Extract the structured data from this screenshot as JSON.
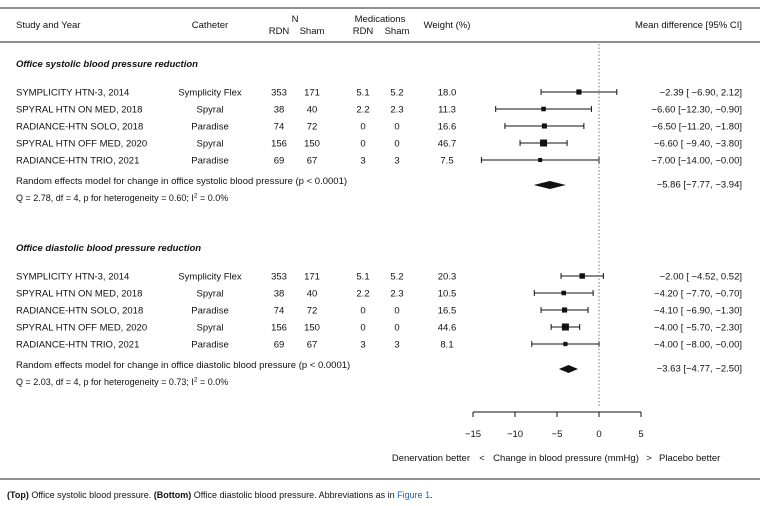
{
  "headers": {
    "study": "Study and Year",
    "catheter": "Catheter",
    "n": "N",
    "medications": "Medications",
    "rdn": "RDN",
    "sham": "Sham",
    "weight": "Weight (%)",
    "mean_diff": "Mean difference [95% CI]"
  },
  "axis": {
    "xlim": [
      -15,
      5
    ],
    "ticks": [
      -15,
      -10,
      -5,
      0,
      5
    ],
    "reference_line": 0,
    "label_left": "Denervation better",
    "label_sep_left": "<",
    "label_center": "Change in blood pressure (mmHg)",
    "label_sep_right": ">",
    "label_right": "Placebo better"
  },
  "caption": {
    "top_bold": "(Top)",
    "top_text": " Office systolic blood pressure. ",
    "bottom_bold": "(Bottom)",
    "bottom_text": " Office diastolic blood pressure. Abbreviations as in ",
    "link": "Figure 1",
    "end": "."
  },
  "chart_data": [
    {
      "type": "forest",
      "title": "Office systolic blood pressure reduction",
      "rows": [
        {
          "study": "SYMPLICITY HTN-3, 2014",
          "catheter": "Symplicity Flex",
          "n_rdn": "353",
          "n_sham": "171",
          "med_rdn": "5.1",
          "med_sham": "5.2",
          "weight": "18.0",
          "mean": -2.39,
          "lo": -6.9,
          "hi": 2.12,
          "ci_text": "−2.39 [ −6.90,  2.12]"
        },
        {
          "study": "SPYRAL HTN ON MED, 2018",
          "catheter": "Spyral",
          "n_rdn": "38",
          "n_sham": "40",
          "med_rdn": "2.2",
          "med_sham": "2.3",
          "weight": "11.3",
          "mean": -6.6,
          "lo": -12.3,
          "hi": -0.9,
          "ci_text": "−6.60 [−12.30, −0.90]"
        },
        {
          "study": "RADIANCE-HTN SOLO, 2018",
          "catheter": "Paradise",
          "n_rdn": "74",
          "n_sham": "72",
          "med_rdn": "0",
          "med_sham": "0",
          "weight": "16.6",
          "mean": -6.5,
          "lo": -11.2,
          "hi": -1.8,
          "ci_text": "−6.50 [−11.20, −1.80]"
        },
        {
          "study": "SPYRAL HTN OFF MED, 2020",
          "catheter": "Spyral",
          "n_rdn": "156",
          "n_sham": "150",
          "med_rdn": "0",
          "med_sham": "0",
          "weight": "46.7",
          "mean": -6.6,
          "lo": -9.4,
          "hi": -3.8,
          "ci_text": "−6.60 [ −9.40, −3.80]"
        },
        {
          "study": "RADIANCE-HTN TRIO, 2021",
          "catheter": "Paradise",
          "n_rdn": "69",
          "n_sham": "67",
          "med_rdn": "3",
          "med_sham": "3",
          "weight": "7.5",
          "mean": -7.0,
          "lo": -14.0,
          "hi": 0.0,
          "ci_text": "−7.00 [−14.00, −0.00]"
        }
      ],
      "summary": {
        "label": "Random effects model for change in office systolic blood pressure (p < 0.0001)",
        "mean": -5.86,
        "lo": -7.77,
        "hi": -3.94,
        "ci_text": "−5.86 [−7.77, −3.94]"
      },
      "heterogeneity": {
        "prefix": "Q = 2.78, df = 4, p for heterogeneity = 0.60; I",
        "sup": "2",
        "suffix": " = 0.0%"
      }
    },
    {
      "type": "forest",
      "title": "Office diastolic blood pressure reduction",
      "rows": [
        {
          "study": "SYMPLICITY HTN-3, 2014",
          "catheter": "Symplicity Flex",
          "n_rdn": "353",
          "n_sham": "171",
          "med_rdn": "5.1",
          "med_sham": "5.2",
          "weight": "20.3",
          "mean": -2.0,
          "lo": -4.52,
          "hi": 0.52,
          "ci_text": "−2.00 [ −4.52,  0.52]"
        },
        {
          "study": "SPYRAL HTN ON MED, 2018",
          "catheter": "Spyral",
          "n_rdn": "38",
          "n_sham": "40",
          "med_rdn": "2.2",
          "med_sham": "2.3",
          "weight": "10.5",
          "mean": -4.2,
          "lo": -7.7,
          "hi": -0.7,
          "ci_text": "−4.20 [ −7.70, −0.70]"
        },
        {
          "study": "RADIANCE-HTN SOLO, 2018",
          "catheter": "Paradise",
          "n_rdn": "74",
          "n_sham": "72",
          "med_rdn": "0",
          "med_sham": "0",
          "weight": "16.5",
          "mean": -4.1,
          "lo": -6.9,
          "hi": -1.3,
          "ci_text": "−4.10 [ −6.90, −1.30]"
        },
        {
          "study": "SPYRAL HTN OFF MED, 2020",
          "catheter": "Spyral",
          "n_rdn": "156",
          "n_sham": "150",
          "med_rdn": "0",
          "med_sham": "0",
          "weight": "44.6",
          "mean": -4.0,
          "lo": -5.7,
          "hi": -2.3,
          "ci_text": "−4.00 [ −5.70, −2.30]"
        },
        {
          "study": "RADIANCE-HTN TRIO, 2021",
          "catheter": "Paradise",
          "n_rdn": "69",
          "n_sham": "67",
          "med_rdn": "3",
          "med_sham": "3",
          "weight": "8.1",
          "mean": -4.0,
          "lo": -8.0,
          "hi": 0.0,
          "ci_text": "−4.00 [ −8.00, −0.00]"
        }
      ],
      "summary": {
        "label": "Random effects model for change in office diastolic blood pressure (p < 0.0001)",
        "mean": -3.63,
        "lo": -4.77,
        "hi": -2.5,
        "ci_text": "−3.63 [−4.77, −2.50]"
      },
      "heterogeneity": {
        "prefix": "Q = 2.03, df = 4, p for heterogeneity = 0.73; I",
        "sup": "2",
        "suffix": " = 0.0%"
      }
    }
  ]
}
